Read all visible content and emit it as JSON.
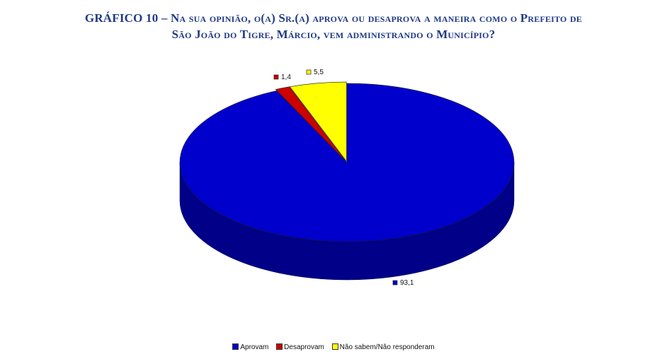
{
  "title": {
    "line1": "GRÁFICO 10 – Na sua opinião, o(a) Sr.(a) aprova ou desaprova a maneira como o Prefeito de",
    "line2": "São João do Tigre, Márcio, vem administrando o Município?"
  },
  "chart_data": {
    "type": "pie",
    "title": "GRÁFICO 10 – Na sua opinião, o(a) Sr.(a) aprova ou desaprova a maneira como o Prefeito de São João do Tigre, Márcio, vem administrando o Município?",
    "categories": [
      "Aprovam",
      "Desaprovam",
      "Não sabem/Não responderam"
    ],
    "values": [
      93.1,
      1.4,
      5.5
    ],
    "value_labels": [
      "93,1",
      "1,4",
      "5,5"
    ],
    "colors": [
      "#0000cc",
      "#cc0000",
      "#ffff00"
    ],
    "side_colors": [
      "#000088",
      "#7a0000",
      "#999900"
    ],
    "legend_position": "bottom",
    "style": "3d-pie"
  }
}
